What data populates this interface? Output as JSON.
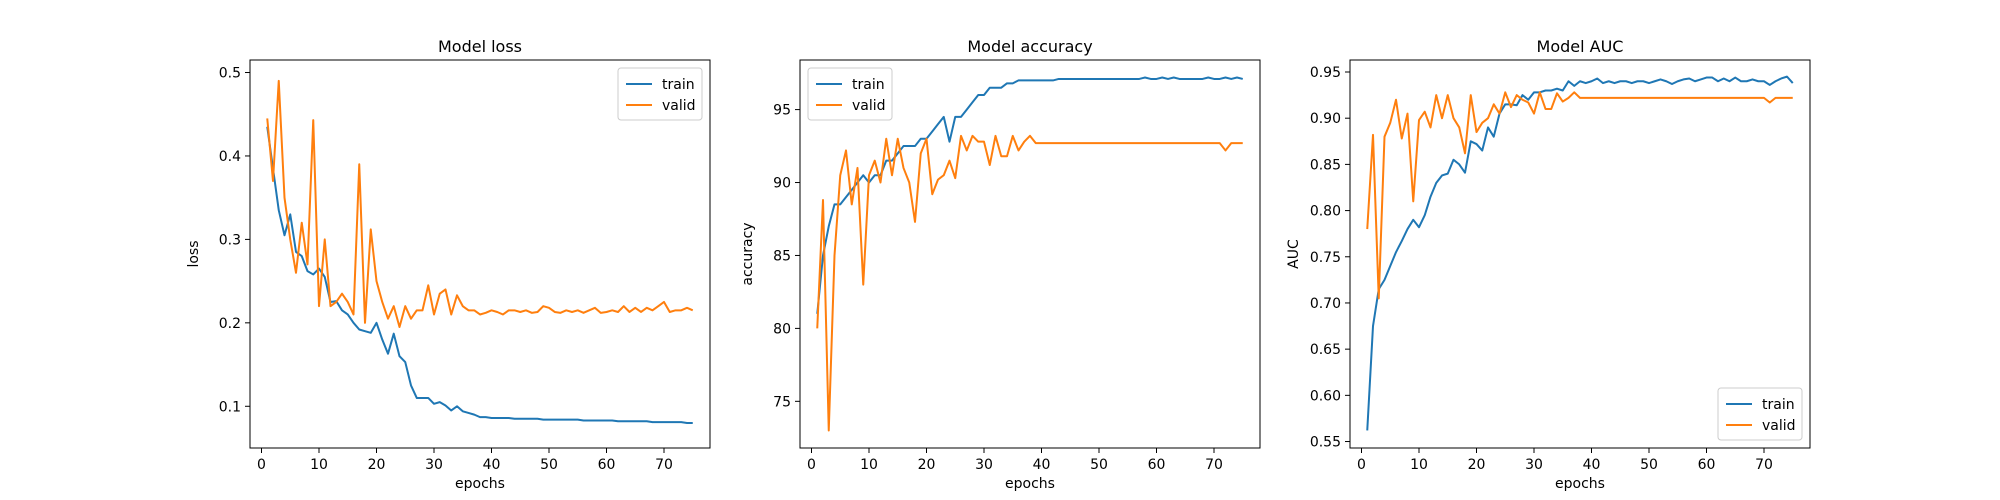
{
  "chart_data": [
    {
      "type": "line",
      "title": "Model loss",
      "xlabel": "epochs",
      "ylabel": "loss",
      "xlim": [
        -2,
        78
      ],
      "ylim": [
        0.05,
        0.515
      ],
      "xticks": [
        0,
        10,
        20,
        30,
        40,
        50,
        60,
        70
      ],
      "yticks": [
        0.1,
        0.2,
        0.3,
        0.4,
        0.5
      ],
      "legend_location": "upper right",
      "series": [
        {
          "name": "train",
          "color": "#1f77b4",
          "x_start": 1,
          "values": [
            0.435,
            0.385,
            0.335,
            0.305,
            0.33,
            0.285,
            0.28,
            0.262,
            0.258,
            0.265,
            0.255,
            0.225,
            0.226,
            0.215,
            0.21,
            0.2,
            0.192,
            0.19,
            0.188,
            0.2,
            0.18,
            0.163,
            0.187,
            0.16,
            0.153,
            0.125,
            0.11,
            0.11,
            0.11,
            0.103,
            0.105,
            0.101,
            0.095,
            0.1,
            0.094,
            0.092,
            0.09,
            0.087,
            0.087,
            0.086,
            0.086,
            0.086,
            0.086,
            0.085,
            0.085,
            0.085,
            0.085,
            0.085,
            0.084,
            0.084,
            0.084,
            0.084,
            0.084,
            0.084,
            0.084,
            0.083,
            0.083,
            0.083,
            0.083,
            0.083,
            0.083,
            0.082,
            0.082,
            0.082,
            0.082,
            0.082,
            0.082,
            0.081,
            0.081,
            0.081,
            0.081,
            0.081,
            0.081,
            0.08,
            0.08
          ]
        },
        {
          "name": "valid",
          "color": "#ff7f0e",
          "x_start": 1,
          "values": [
            0.445,
            0.37,
            0.49,
            0.35,
            0.3,
            0.26,
            0.32,
            0.27,
            0.443,
            0.22,
            0.3,
            0.22,
            0.225,
            0.235,
            0.225,
            0.21,
            0.39,
            0.2,
            0.312,
            0.25,
            0.225,
            0.205,
            0.22,
            0.195,
            0.22,
            0.205,
            0.215,
            0.215,
            0.245,
            0.21,
            0.235,
            0.24,
            0.21,
            0.233,
            0.22,
            0.215,
            0.215,
            0.21,
            0.212,
            0.215,
            0.213,
            0.21,
            0.215,
            0.215,
            0.213,
            0.215,
            0.212,
            0.213,
            0.22,
            0.218,
            0.213,
            0.212,
            0.215,
            0.213,
            0.215,
            0.212,
            0.215,
            0.218,
            0.212,
            0.213,
            0.215,
            0.213,
            0.22,
            0.213,
            0.218,
            0.213,
            0.218,
            0.215,
            0.22,
            0.225,
            0.213,
            0.215,
            0.215,
            0.218,
            0.215
          ]
        }
      ]
    },
    {
      "type": "line",
      "title": "Model accuracy",
      "xlabel": "epochs",
      "ylabel": "accuracy",
      "xlim": [
        -2,
        78
      ],
      "ylim": [
        71.8,
        98.4
      ],
      "xticks": [
        0,
        10,
        20,
        30,
        40,
        50,
        60,
        70
      ],
      "yticks": [
        75,
        80,
        85,
        90,
        95
      ],
      "legend_location": "upper left",
      "series": [
        {
          "name": "train",
          "color": "#1f77b4",
          "x_start": 1,
          "values": [
            81.0,
            85.0,
            87.0,
            88.5,
            88.5,
            89.0,
            89.5,
            90.0,
            90.5,
            90.0,
            90.5,
            90.5,
            91.5,
            91.5,
            92.0,
            92.5,
            92.5,
            92.5,
            93.0,
            93.0,
            93.5,
            94.0,
            94.5,
            92.8,
            94.5,
            94.5,
            95.0,
            95.5,
            96.0,
            96.0,
            96.5,
            96.5,
            96.5,
            96.8,
            96.8,
            97.0,
            97.0,
            97.0,
            97.0,
            97.0,
            97.0,
            97.0,
            97.1,
            97.1,
            97.1,
            97.1,
            97.1,
            97.1,
            97.1,
            97.1,
            97.1,
            97.1,
            97.1,
            97.1,
            97.1,
            97.1,
            97.1,
            97.2,
            97.1,
            97.1,
            97.2,
            97.1,
            97.2,
            97.1,
            97.1,
            97.1,
            97.1,
            97.1,
            97.2,
            97.1,
            97.1,
            97.2,
            97.1,
            97.2,
            97.1
          ]
        },
        {
          "name": "valid",
          "color": "#ff7f0e",
          "x_start": 1,
          "values": [
            80.0,
            88.8,
            73.0,
            85.0,
            90.5,
            92.2,
            88.5,
            91.0,
            83.0,
            90.5,
            91.5,
            90.0,
            93.0,
            90.5,
            93.0,
            91.0,
            90.0,
            87.3,
            92.0,
            93.0,
            89.2,
            90.2,
            90.5,
            91.5,
            90.3,
            93.2,
            92.2,
            93.2,
            92.8,
            92.8,
            91.2,
            93.2,
            91.8,
            91.8,
            93.2,
            92.2,
            92.8,
            93.2,
            92.7,
            92.7,
            92.7,
            92.7,
            92.7,
            92.7,
            92.7,
            92.7,
            92.7,
            92.7,
            92.7,
            92.7,
            92.7,
            92.7,
            92.7,
            92.7,
            92.7,
            92.7,
            92.7,
            92.7,
            92.7,
            92.7,
            92.7,
            92.7,
            92.7,
            92.7,
            92.7,
            92.7,
            92.7,
            92.7,
            92.7,
            92.7,
            92.7,
            92.2,
            92.7,
            92.7,
            92.7
          ]
        }
      ]
    },
    {
      "type": "line",
      "title": "Model AUC",
      "xlabel": "epochs",
      "ylabel": "AUC",
      "xlim": [
        -2,
        78
      ],
      "ylim": [
        0.543,
        0.963
      ],
      "xticks": [
        0,
        10,
        20,
        30,
        40,
        50,
        60,
        70
      ],
      "yticks": [
        0.55,
        0.6,
        0.65,
        0.7,
        0.75,
        0.8,
        0.85,
        0.9,
        0.95
      ],
      "legend_location": "lower right",
      "series": [
        {
          "name": "train",
          "color": "#1f77b4",
          "x_start": 1,
          "values": [
            0.562,
            0.675,
            0.715,
            0.725,
            0.74,
            0.755,
            0.767,
            0.78,
            0.79,
            0.782,
            0.795,
            0.815,
            0.83,
            0.838,
            0.84,
            0.855,
            0.85,
            0.841,
            0.875,
            0.872,
            0.865,
            0.89,
            0.88,
            0.905,
            0.915,
            0.915,
            0.914,
            0.925,
            0.92,
            0.928,
            0.928,
            0.93,
            0.93,
            0.932,
            0.93,
            0.94,
            0.935,
            0.94,
            0.938,
            0.94,
            0.943,
            0.938,
            0.94,
            0.938,
            0.94,
            0.94,
            0.938,
            0.94,
            0.94,
            0.938,
            0.94,
            0.942,
            0.94,
            0.937,
            0.94,
            0.942,
            0.943,
            0.94,
            0.942,
            0.944,
            0.944,
            0.94,
            0.943,
            0.94,
            0.944,
            0.94,
            0.94,
            0.942,
            0.94,
            0.94,
            0.936,
            0.94,
            0.943,
            0.945,
            0.938
          ]
        },
        {
          "name": "valid",
          "color": "#ff7f0e",
          "x_start": 1,
          "values": [
            0.78,
            0.882,
            0.705,
            0.88,
            0.895,
            0.92,
            0.878,
            0.905,
            0.81,
            0.898,
            0.907,
            0.89,
            0.925,
            0.9,
            0.925,
            0.9,
            0.89,
            0.862,
            0.925,
            0.885,
            0.895,
            0.9,
            0.915,
            0.905,
            0.928,
            0.912,
            0.925,
            0.92,
            0.917,
            0.905,
            0.928,
            0.91,
            0.91,
            0.927,
            0.918,
            0.922,
            0.928,
            0.922,
            0.922,
            0.922,
            0.922,
            0.922,
            0.922,
            0.922,
            0.922,
            0.922,
            0.922,
            0.922,
            0.922,
            0.922,
            0.922,
            0.922,
            0.922,
            0.922,
            0.922,
            0.922,
            0.922,
            0.922,
            0.922,
            0.922,
            0.922,
            0.922,
            0.922,
            0.922,
            0.922,
            0.922,
            0.922,
            0.922,
            0.922,
            0.922,
            0.917,
            0.922,
            0.922,
            0.922,
            0.922
          ]
        }
      ]
    }
  ]
}
